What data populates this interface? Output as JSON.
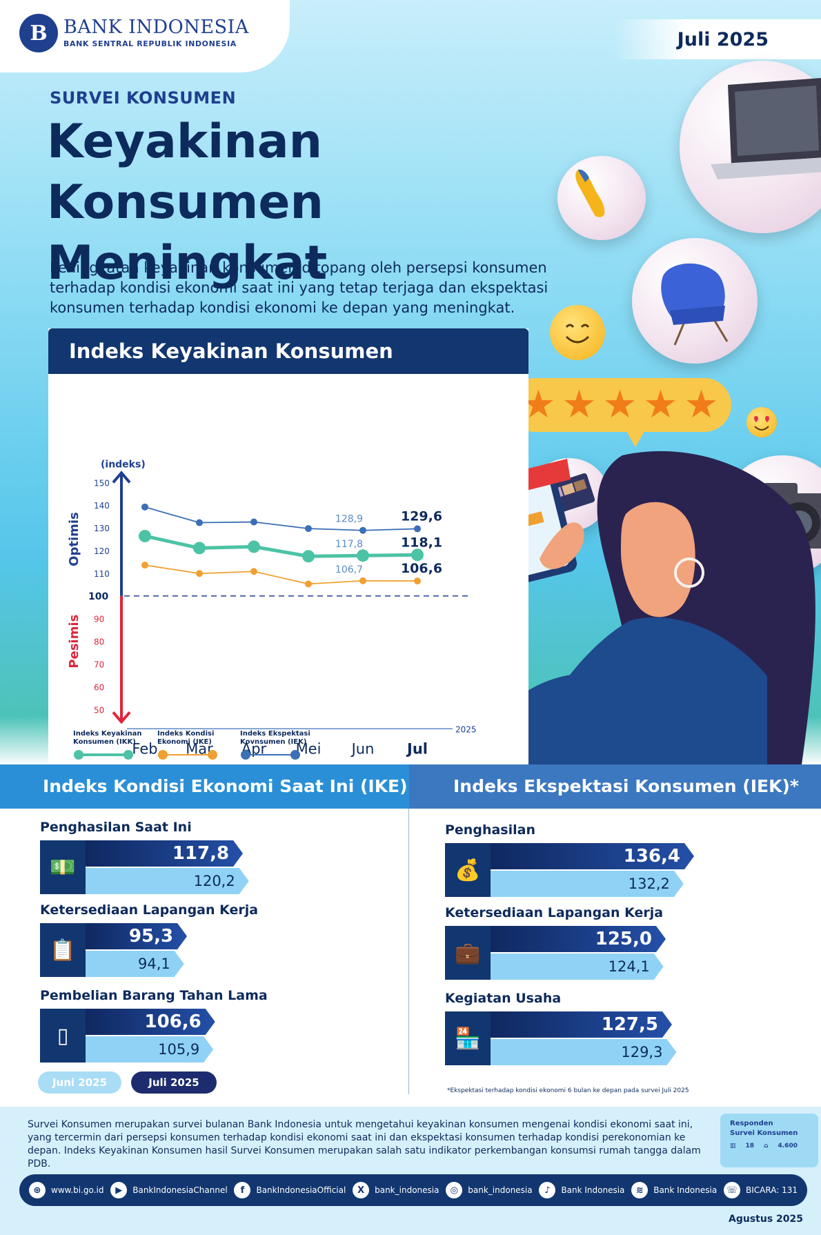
{
  "header": {
    "logo_mark": "B",
    "logo_name": "BANK INDONESIA",
    "logo_sub": "BANK SENTRAL REPUBLIK INDONESIA",
    "period": "Juli 2025"
  },
  "hero": {
    "kicker": "SURVEI KONSUMEN",
    "headline": "Keyakinan Konsumen Meningkat",
    "intro": "Peningkatan keyakinan konsumen ditopang oleh persepsi konsumen terhadap kondisi ekonomi saat ini yang tetap terjaga dan ekspektasi konsumen terhadap kondisi ekonomi ke depan yang meningkat."
  },
  "chart_data": {
    "type": "line",
    "title": "Indeks Keyakinan Konsumen",
    "ylabel": "(indeks)",
    "zone_optimis": "Optimis",
    "zone_pesimis": "Pesimis",
    "x_year": "2025",
    "categories": [
      "Feb",
      "Mar",
      "Apr",
      "Mei",
      "Jun",
      "Jul"
    ],
    "ylim": [
      50,
      150
    ],
    "yticks": [
      50,
      60,
      70,
      80,
      90,
      100,
      110,
      120,
      130,
      140,
      150
    ],
    "threshold": 100,
    "series": [
      {
        "name": "Indeks Keyakinan Konsumen (IKK)",
        "color": "#4cc3a5",
        "values": [
          126.4,
          121.1,
          121.7,
          117.5,
          117.8,
          118.1
        ]
      },
      {
        "name": "Indeks Kondisi Ekonomi (IKE)",
        "color": "#f0a030",
        "values": [
          113.6,
          109.9,
          110.8,
          105.3,
          106.7,
          106.6
        ]
      },
      {
        "name": "Indeks Ekspektasi Kovnsumen (IEK)",
        "color": "#3b6fb6",
        "values": [
          139.2,
          132.3,
          132.6,
          129.7,
          128.9,
          129.6
        ]
      }
    ],
    "labels": [
      {
        "series": 2,
        "index": 4,
        "text": "128,9"
      },
      {
        "series": 2,
        "index": 5,
        "text": "129,6"
      },
      {
        "series": 0,
        "index": 4,
        "text": "117,8"
      },
      {
        "series": 0,
        "index": 5,
        "text": "118,1"
      },
      {
        "series": 1,
        "index": 4,
        "text": "106,7"
      },
      {
        "series": 1,
        "index": 5,
        "text": "106,6"
      }
    ]
  },
  "ike": {
    "title": "Indeks Kondisi Ekonomi Saat Ini (IKE)",
    "items": [
      {
        "label": "Penghasilan Saat Ini",
        "icon": "money-hand-icon",
        "jul": "117,8",
        "jun": "120,2",
        "jul_value": 117.8,
        "jun_value": 120.2
      },
      {
        "label": "Ketersediaan Lapangan Kerja",
        "icon": "document-person-icon",
        "jul": "95,3",
        "jun": "94,1",
        "jul_value": 95.3,
        "jun_value": 94.1
      },
      {
        "label": "Pembelian Barang Tahan Lama",
        "icon": "refrigerator-icon",
        "jul": "106,6",
        "jun": "105,9",
        "jul_value": 106.6,
        "jun_value": 105.9
      }
    ]
  },
  "iek": {
    "title": "Indeks Ekspektasi Konsumen (IEK)*",
    "items": [
      {
        "label": "Penghasilan",
        "icon": "money-bag-hand-icon",
        "jul": "136,4",
        "jun": "132,2",
        "jul_value": 136.4,
        "jun_value": 132.2
      },
      {
        "label": "Ketersediaan Lapangan Kerja",
        "icon": "briefcase-hands-icon",
        "jul": "125,0",
        "jun": "124,1",
        "jul_value": 125.0,
        "jun_value": 124.1
      },
      {
        "label": "Kegiatan Usaha",
        "icon": "storefront-icon",
        "jul": "127,5",
        "jun": "129,3",
        "jul_value": 127.5,
        "jun_value": 129.3
      }
    ],
    "footnote": "*Ekspektasi terhadap kondisi ekonomi 6 bulan ke depan pada survei Juli 2025"
  },
  "legend_bottom": {
    "jun": "Juni 2025",
    "jul": "Juli 2025"
  },
  "description": "Survei Konsumen merupakan survei bulanan Bank Indonesia untuk mengetahui keyakinan konsumen mengenai kondisi ekonomi saat ini, yang tercermin dari persepsi konsumen terhadap kondisi ekonomi saat ini dan ekspektasi konsumen terhadap kondisi perekonomian ke depan. Indeks Keyakinan Konsumen hasil Survei Konsumen merupakan salah satu indikator perkembangan konsumsi rumah tangga dalam PDB.",
  "respondents": {
    "label": "Responden Survei Konsumen",
    "cities": "18",
    "households": "4.600"
  },
  "social": [
    {
      "icon": "globe-icon",
      "glyph": "⊕",
      "text": "www.bi.go.id"
    },
    {
      "icon": "youtube-icon",
      "glyph": "▶",
      "text": "BankIndonesiaChannel"
    },
    {
      "icon": "facebook-icon",
      "glyph": "f",
      "text": "BankIndonesiaOfficial"
    },
    {
      "icon": "x-icon",
      "glyph": "X",
      "text": "bank_indonesia"
    },
    {
      "icon": "instagram-icon",
      "glyph": "◎",
      "text": "bank_indonesia"
    },
    {
      "icon": "tiktok-icon",
      "glyph": "♪",
      "text": "Bank Indonesia"
    },
    {
      "icon": "spotify-icon",
      "glyph": "≋",
      "text": "Bank Indonesia"
    },
    {
      "icon": "bicara-icon",
      "glyph": "☏",
      "text": "BICARA: 131"
    }
  ],
  "release_date": "Agustus 2025"
}
